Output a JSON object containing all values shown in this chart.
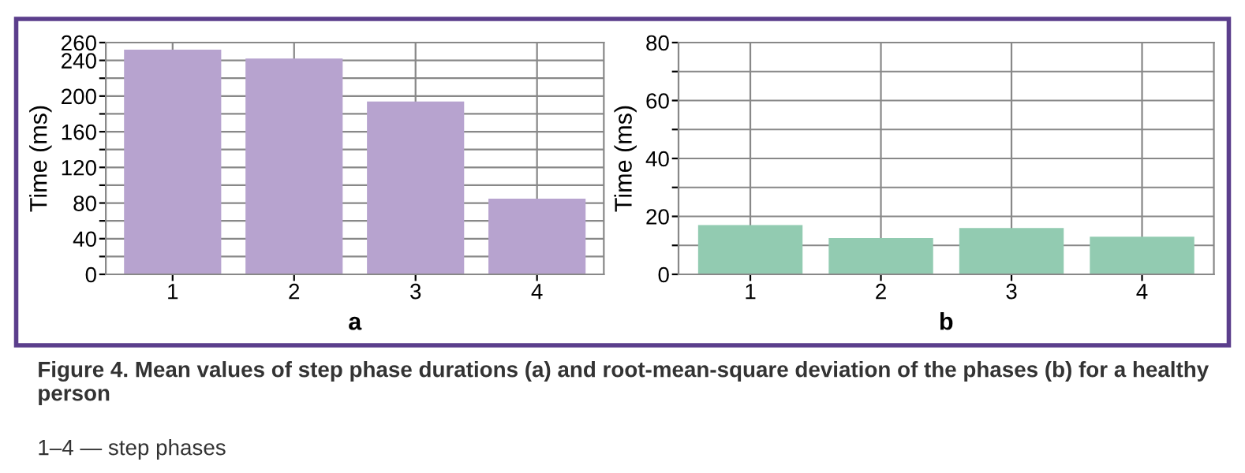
{
  "chart_data": [
    {
      "type": "bar",
      "xlabel": "a",
      "ylabel": "Time (ms)",
      "categories": [
        "1",
        "2",
        "3",
        "4"
      ],
      "values": [
        252,
        242,
        194,
        85
      ],
      "color": "#b7a3cf",
      "ylim": [
        0,
        260
      ],
      "yticks": [
        0,
        {
          "value": 20,
          "label": null
        },
        40,
        {
          "value": 60,
          "label": null
        },
        80,
        {
          "value": 100,
          "label": null
        },
        120,
        {
          "value": 140,
          "label": null
        },
        160,
        {
          "value": 180,
          "label": null
        },
        200,
        {
          "value": 220,
          "label": null
        },
        240,
        260
      ],
      "grid": true,
      "annotations": [
        "Figure 4. Mean values of step phase durations (a) and root-mean-square deviation of the phases (b) for a healthy person",
        "1–4 — step phases"
      ]
    },
    {
      "type": "bar",
      "xlabel": "b",
      "ylabel": "Time (ms)",
      "categories": [
        "1",
        "2",
        "3",
        "4"
      ],
      "values": [
        17,
        12.5,
        16,
        13
      ],
      "color": "#92cbb1",
      "ylim": [
        0,
        80
      ],
      "yticks": [
        0,
        {
          "value": 10,
          "label": null
        },
        20,
        {
          "value": 30,
          "label": null
        },
        40,
        {
          "value": 50,
          "label": null
        },
        60,
        {
          "value": 70,
          "label": null
        },
        80
      ],
      "grid": true
    }
  ]
}
